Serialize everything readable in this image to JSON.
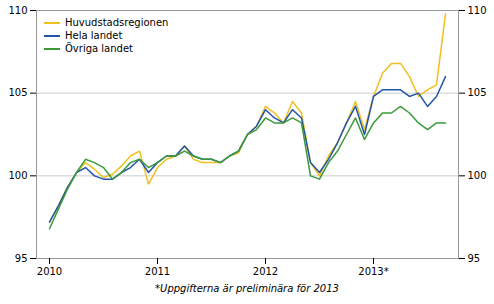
{
  "chart_data": {
    "type": "line",
    "caption": "*Uppgifterna är preliminära för 2013",
    "categories": [
      "2010",
      null,
      null,
      null,
      null,
      null,
      null,
      null,
      null,
      null,
      null,
      null,
      "2011",
      null,
      null,
      null,
      null,
      null,
      null,
      null,
      null,
      null,
      null,
      null,
      "2012",
      null,
      null,
      null,
      null,
      null,
      null,
      null,
      null,
      null,
      null,
      null,
      "2013*",
      null,
      null,
      null,
      null,
      null,
      null,
      null,
      null
    ],
    "series": [
      {
        "name": "Huvudstadsregionen",
        "color": "#f0c020",
        "values": [
          97.2,
          98.2,
          99.3,
          100.2,
          100.8,
          100.4,
          99.9,
          100.1,
          100.6,
          101.2,
          101.5,
          99.5,
          100.5,
          101.0,
          101.2,
          101.8,
          101.0,
          100.8,
          100.8,
          100.8,
          101.2,
          101.4,
          102.5,
          103.0,
          104.2,
          103.8,
          103.2,
          104.5,
          103.8,
          100.8,
          100.0,
          101.2,
          102.0,
          103.2,
          104.5,
          102.8,
          104.8,
          106.2,
          106.8,
          106.8,
          106.0,
          104.8,
          105.2,
          105.5,
          109.8
        ]
      },
      {
        "name": "Hela landet",
        "color": "#2255aa",
        "values": [
          97.2,
          98.2,
          99.3,
          100.2,
          100.5,
          100.0,
          99.8,
          99.8,
          100.2,
          100.5,
          101.0,
          100.2,
          100.8,
          101.2,
          101.2,
          101.8,
          101.2,
          101.0,
          101.0,
          100.8,
          101.2,
          101.5,
          102.5,
          103.0,
          104.0,
          103.5,
          103.2,
          104.0,
          103.5,
          100.8,
          100.2,
          101.0,
          102.0,
          103.2,
          104.2,
          102.5,
          104.8,
          105.2,
          105.2,
          105.2,
          104.8,
          105.0,
          104.2,
          104.8,
          106.0
        ]
      },
      {
        "name": "Övriga landet",
        "color": "#3a9a3a",
        "values": [
          96.8,
          98.0,
          99.2,
          100.2,
          101.0,
          100.8,
          100.5,
          99.8,
          100.2,
          100.8,
          101.0,
          100.5,
          100.8,
          101.2,
          101.2,
          101.5,
          101.2,
          101.0,
          101.0,
          100.8,
          101.2,
          101.5,
          102.5,
          102.8,
          103.5,
          103.2,
          103.2,
          103.5,
          103.2,
          100.0,
          99.8,
          100.8,
          101.5,
          102.5,
          103.5,
          102.2,
          103.2,
          103.8,
          103.8,
          104.2,
          103.8,
          103.2,
          102.8,
          103.2,
          103.2
        ]
      }
    ],
    "ylim": [
      95,
      110
    ],
    "yticks": [
      95,
      100,
      105,
      110
    ],
    "grid": true,
    "legend": "upper left"
  }
}
